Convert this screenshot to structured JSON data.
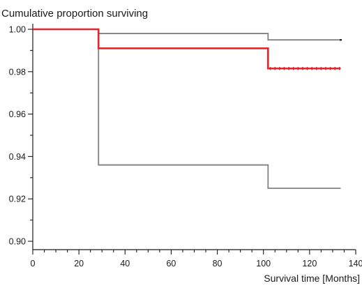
{
  "chart_data": {
    "type": "line",
    "title": "Cumulative proportion surviving",
    "xlabel": "Survival time [Months]",
    "ylabel": "",
    "xlim": [
      0,
      140
    ],
    "ylim": [
      0.9,
      1.0
    ],
    "x_major_ticks": [
      0,
      20,
      40,
      60,
      80,
      100,
      120,
      140
    ],
    "x_minor_step": 5,
    "y_major_ticks": [
      0.9,
      0.92,
      0.94,
      0.96,
      0.98,
      1.0
    ],
    "y_tick_labels": [
      "0.90",
      "0.92",
      "0.94",
      "0.96",
      "0.98",
      "1.00"
    ],
    "y_minor_step": 0.01,
    "grid": false,
    "legend": "none",
    "series": [
      {
        "color": "#808080",
        "role": "upper-confidence-bound",
        "x": [
          0,
          28.5,
          28.5,
          102,
          102,
          133.5
        ],
        "y": [
          1.0,
          1.0,
          0.998,
          0.998,
          0.995,
          0.995
        ]
      },
      {
        "color": "#808080",
        "role": "lower-confidence-bound",
        "x": [
          0,
          28.5,
          28.5,
          102,
          102,
          133.5
        ],
        "y": [
          1.0,
          1.0,
          0.936,
          0.936,
          0.925,
          0.925
        ]
      },
      {
        "color": "#e8232a",
        "role": "survival-estimate",
        "x": [
          0,
          28.5,
          28.5,
          102,
          102,
          133.5
        ],
        "y": [
          1.0,
          1.0,
          0.991,
          0.991,
          0.9815,
          0.9815
        ],
        "censored_x": [
          103,
          105,
          107,
          109,
          111,
          113,
          115,
          117,
          119,
          121,
          123,
          125,
          127,
          129,
          131,
          133
        ]
      }
    ]
  }
}
